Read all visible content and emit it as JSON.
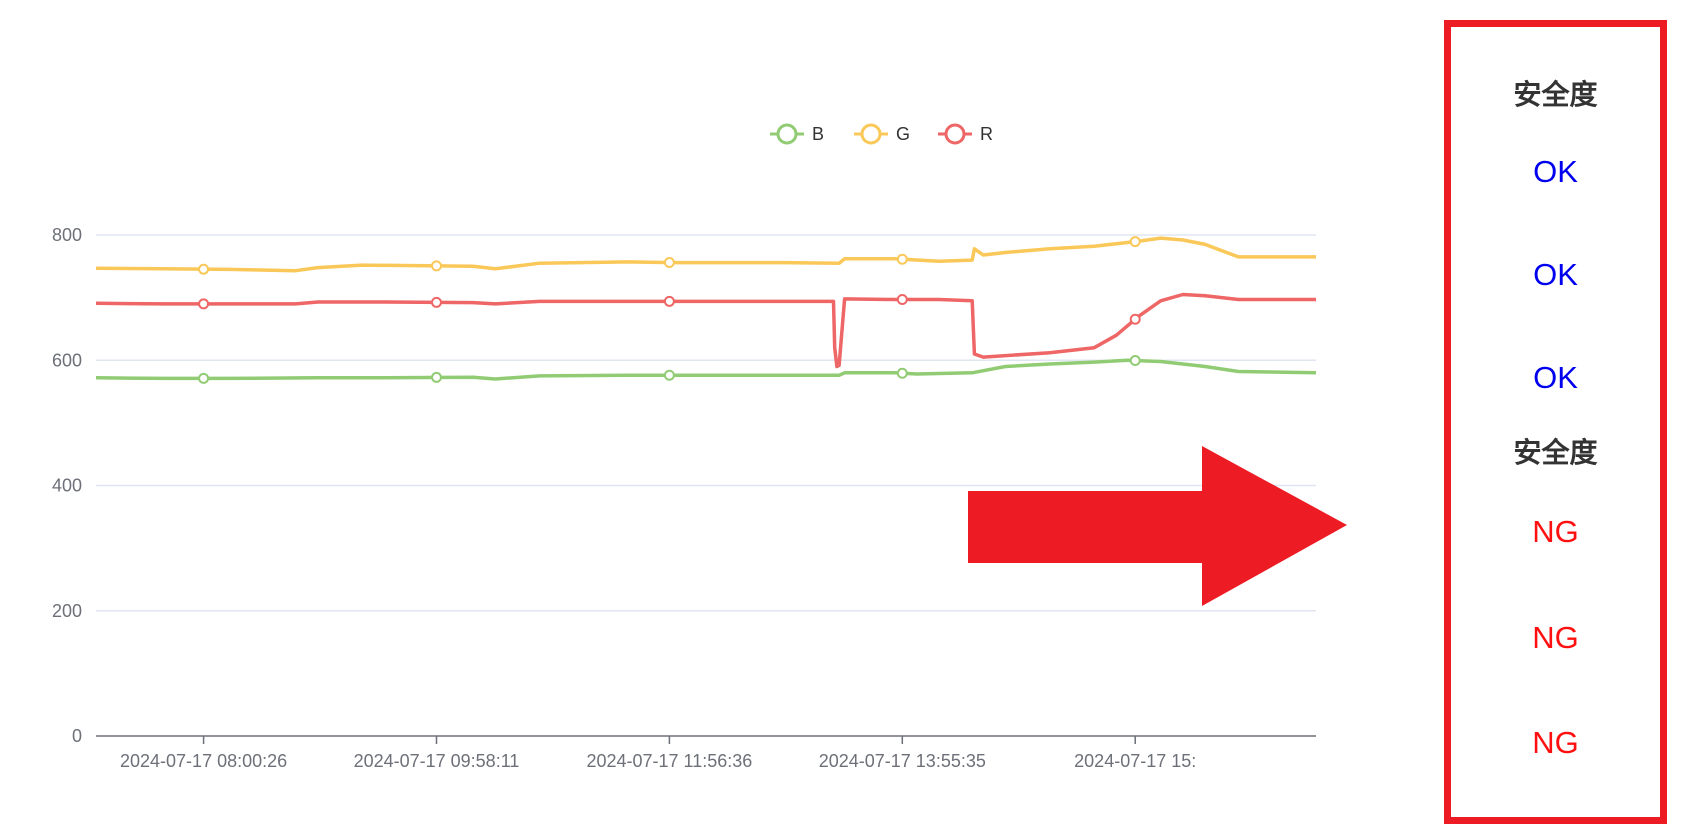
{
  "chart_data": {
    "type": "line",
    "legend": [
      "B",
      "G",
      "R"
    ],
    "legend_position": "top-center",
    "x_tick_labels": [
      "2024-07-17 08:00:26",
      "2024-07-17 09:58:11",
      "2024-07-17 11:56:36",
      "2024-07-17 13:55:35",
      "2024-07-17 15:"
    ],
    "ylim": [
      0,
      800
    ],
    "y_ticks": [
      0,
      200,
      400,
      600,
      800
    ],
    "grid": true,
    "series": [
      {
        "name": "B",
        "color": "#91cc75",
        "x": [
          0,
          60,
          120,
          200,
          260,
          340,
          360,
          400,
          480,
          520,
          620,
          670,
          675,
          680,
          720,
          740,
          790,
          820,
          860,
          900,
          930,
          960,
          1000,
          1030,
          1100
        ],
        "y": [
          572,
          571,
          571,
          572,
          572,
          573,
          570,
          575,
          576,
          576,
          576,
          576,
          580,
          580,
          580,
          578,
          580,
          590,
          594,
          597,
          600,
          598,
          590,
          582,
          580
        ]
      },
      {
        "name": "G",
        "color": "#fac858",
        "x": [
          0,
          60,
          120,
          180,
          200,
          240,
          340,
          360,
          400,
          480,
          520,
          620,
          670,
          675,
          720,
          760,
          790,
          792,
          800,
          820,
          860,
          900,
          940,
          960,
          980,
          1000,
          1030,
          1100
        ],
        "y": [
          747,
          746,
          745,
          743,
          748,
          752,
          750,
          746,
          755,
          757,
          756,
          756,
          755,
          762,
          762,
          758,
          760,
          778,
          768,
          772,
          778,
          782,
          790,
          795,
          792,
          785,
          765,
          765
        ]
      },
      {
        "name": "R",
        "color": "#ee6666",
        "x": [
          0,
          60,
          120,
          180,
          200,
          260,
          340,
          360,
          400,
          480,
          560,
          620,
          665,
          666,
          668,
          670,
          675,
          720,
          760,
          790,
          792,
          800,
          860,
          900,
          920,
          940,
          960,
          980,
          1000,
          1030,
          1100
        ],
        "y": [
          691,
          690,
          690,
          690,
          693,
          693,
          692,
          690,
          694,
          694,
          694,
          694,
          694,
          620,
          590,
          592,
          698,
          697,
          697,
          695,
          610,
          605,
          612,
          620,
          640,
          670,
          695,
          705,
          703,
          697,
          697
        ]
      }
    ],
    "symbol_x": [
      97,
      307,
      517,
      727,
      937
    ]
  },
  "panel": {
    "heading_top": "安全度",
    "statuses_top": [
      "OK",
      "OK",
      "OK"
    ],
    "heading_bottom": "安全度",
    "statuses_bottom": [
      "NG",
      "NG",
      "NG"
    ]
  },
  "colors": {
    "grid": "#e0e6f1",
    "axis": "#6e7079",
    "arrow": "#ed1c24",
    "panel_border": "#ed1c24",
    "ok": "#0000ee",
    "ng": "#ff1010"
  }
}
